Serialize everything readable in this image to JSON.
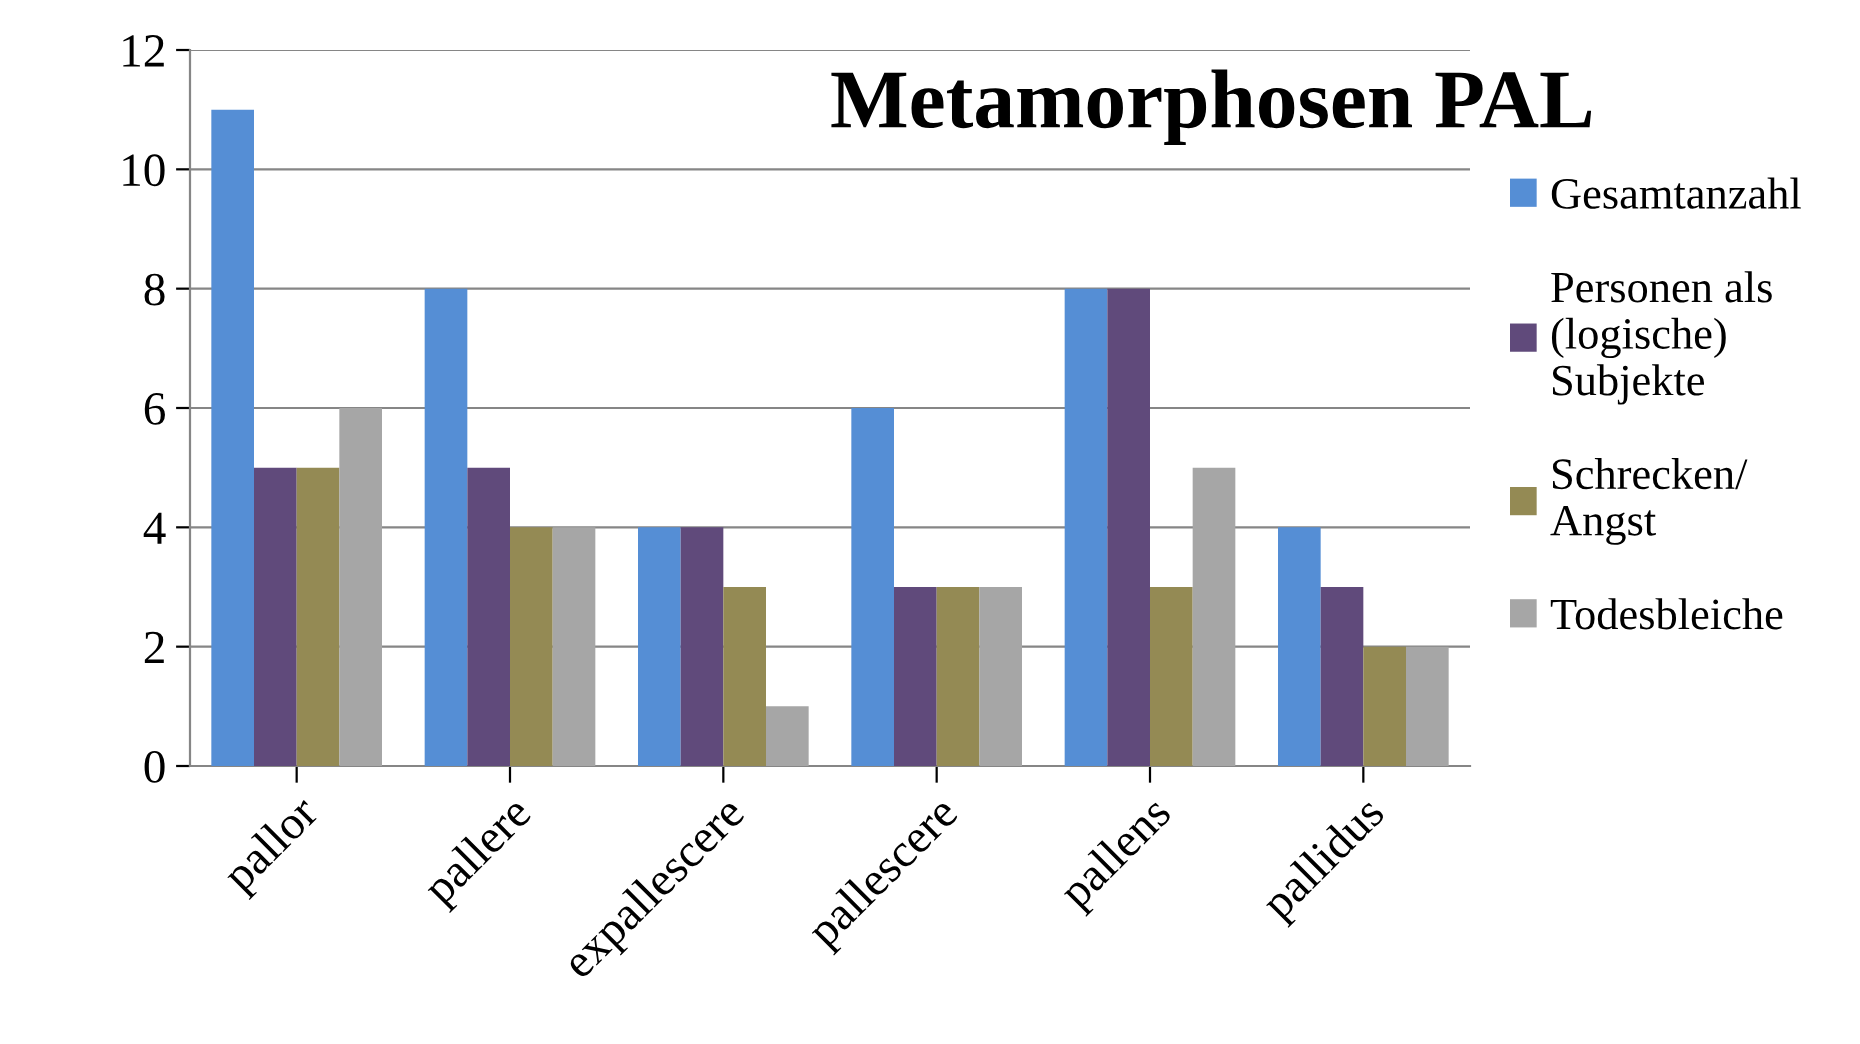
{
  "chart_data": {
    "type": "bar",
    "title": "Metamorphosen PAL",
    "categories": [
      "pallor",
      "pallere",
      "expallescere",
      "pallescere",
      "pallens",
      "pallidus"
    ],
    "series": [
      {
        "name": "Gesamtanzahl",
        "color": "#558ed5",
        "values": [
          11,
          8,
          4,
          6,
          8,
          4
        ]
      },
      {
        "name": "Personen als\n(logische)\nSubjekte",
        "color": "#604a7b",
        "values": [
          5,
          5,
          4,
          3,
          8,
          3
        ]
      },
      {
        "name": "Schrecken/\nAngst",
        "color": "#948a54",
        "values": [
          5,
          4,
          3,
          3,
          3,
          2
        ]
      },
      {
        "name": "Todesbleiche",
        "color": "#a6a6a6",
        "values": [
          6,
          4,
          1,
          3,
          5,
          2
        ]
      }
    ],
    "ylim": [
      0,
      12
    ],
    "yticks": [
      0,
      2,
      4,
      6,
      8,
      10,
      12
    ],
    "grid": "y",
    "legend": "right"
  }
}
